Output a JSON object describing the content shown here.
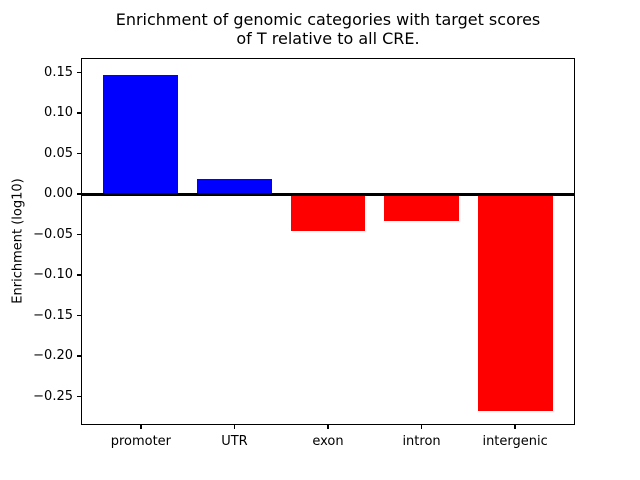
{
  "chart_data": {
    "type": "bar",
    "title_lines": [
      "Enrichment of genomic categories with target scores",
      "of T relative to all CRE."
    ],
    "title": "Enrichment of genomic categories with target scores of T relative to all CRE.",
    "xlabel": "",
    "ylabel": "Enrichment (log10)",
    "categories": [
      "promoter",
      "UTR",
      "exon",
      "intron",
      "intergenic"
    ],
    "values": [
      0.147,
      0.019,
      -0.046,
      -0.033,
      -0.268
    ],
    "bar_colors": {
      "positive": "#0000ff",
      "negative": "#ff0000"
    },
    "axis_color": "#000000",
    "background_color": "#ffffff",
    "ylim": [
      -0.285,
      0.168
    ],
    "xlim": [
      -0.64,
      4.64
    ],
    "yticks": [
      0.15,
      0.1,
      0.05,
      0.0,
      -0.05,
      -0.1,
      -0.15,
      -0.2,
      -0.25
    ],
    "ytick_labels": [
      "0.15",
      "0.10",
      "0.05",
      "0.00",
      "−0.05",
      "−0.10",
      "−0.15",
      "−0.20",
      "−0.25"
    ],
    "bar_width_frac": 0.8,
    "zero_line": true,
    "grid": false,
    "legend": null
  }
}
